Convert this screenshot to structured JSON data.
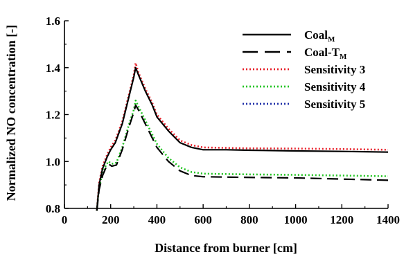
{
  "chart_data": {
    "type": "line",
    "xlabel": "Distance from burner [cm]",
    "ylabel": "Normalized NO concentration [-]",
    "xlim": [
      0,
      1400
    ],
    "ylim": [
      0.8,
      1.6
    ],
    "x_ticks": [
      0,
      200,
      400,
      600,
      800,
      1000,
      1200,
      1400
    ],
    "y_ticks": [
      0.8,
      1.0,
      1.2,
      1.4,
      1.6
    ],
    "x_tick_labels": [
      "0",
      "200",
      "400",
      "600",
      "800",
      "1000",
      "1200",
      "1400"
    ],
    "y_tick_labels": [
      "0.8",
      "1.0",
      "1.2",
      "1.4",
      "1.6"
    ],
    "grid": false,
    "legend_position": "top-right",
    "series": [
      {
        "name": "Coal",
        "name_sub": "M",
        "color": "#000000",
        "style": "solid",
        "points": [
          [
            140,
            0.79
          ],
          [
            150,
            0.9
          ],
          [
            165,
            0.97
          ],
          [
            185,
            1.02
          ],
          [
            200,
            1.05
          ],
          [
            220,
            1.08
          ],
          [
            250,
            1.16
          ],
          [
            275,
            1.26
          ],
          [
            300,
            1.36
          ],
          [
            308,
            1.4
          ],
          [
            320,
            1.37
          ],
          [
            350,
            1.3
          ],
          [
            380,
            1.24
          ],
          [
            400,
            1.19
          ],
          [
            450,
            1.13
          ],
          [
            500,
            1.08
          ],
          [
            550,
            1.06
          ],
          [
            600,
            1.05
          ],
          [
            700,
            1.05
          ],
          [
            800,
            1.048
          ],
          [
            1000,
            1.045
          ],
          [
            1200,
            1.043
          ],
          [
            1400,
            1.04
          ]
        ]
      },
      {
        "name": "Coal-T",
        "name_sub": "M",
        "color": "#000000",
        "style": "dashed",
        "points": [
          [
            140,
            0.79
          ],
          [
            150,
            0.88
          ],
          [
            165,
            0.94
          ],
          [
            180,
            0.975
          ],
          [
            190,
            0.99
          ],
          [
            205,
            0.98
          ],
          [
            225,
            0.985
          ],
          [
            250,
            1.05
          ],
          [
            280,
            1.15
          ],
          [
            300,
            1.21
          ],
          [
            308,
            1.24
          ],
          [
            320,
            1.22
          ],
          [
            350,
            1.16
          ],
          [
            380,
            1.1
          ],
          [
            400,
            1.06
          ],
          [
            450,
            1.0
          ],
          [
            500,
            0.96
          ],
          [
            550,
            0.94
          ],
          [
            600,
            0.935
          ],
          [
            800,
            0.932
          ],
          [
            1000,
            0.93
          ],
          [
            1200,
            0.925
          ],
          [
            1400,
            0.92
          ]
        ]
      },
      {
        "name": "Sensitivity 3",
        "name_sub": "",
        "color": "#e8202a",
        "style": "dotted",
        "points": [
          [
            140,
            0.79
          ],
          [
            150,
            0.91
          ],
          [
            165,
            0.98
          ],
          [
            185,
            1.03
          ],
          [
            200,
            1.06
          ],
          [
            220,
            1.09
          ],
          [
            250,
            1.17
          ],
          [
            275,
            1.27
          ],
          [
            300,
            1.37
          ],
          [
            308,
            1.42
          ],
          [
            320,
            1.38
          ],
          [
            350,
            1.31
          ],
          [
            380,
            1.25
          ],
          [
            400,
            1.2
          ],
          [
            450,
            1.14
          ],
          [
            500,
            1.09
          ],
          [
            550,
            1.07
          ],
          [
            600,
            1.06
          ],
          [
            700,
            1.058
          ],
          [
            800,
            1.056
          ],
          [
            1000,
            1.055
          ],
          [
            1200,
            1.053
          ],
          [
            1400,
            1.05
          ]
        ]
      },
      {
        "name": "Sensitivity 4",
        "name_sub": "",
        "color": "#22c422",
        "style": "dotted",
        "points": [
          [
            140,
            0.79
          ],
          [
            150,
            0.89
          ],
          [
            165,
            0.95
          ],
          [
            180,
            0.985
          ],
          [
            190,
            1.0
          ],
          [
            205,
            0.99
          ],
          [
            225,
            0.995
          ],
          [
            250,
            1.06
          ],
          [
            280,
            1.16
          ],
          [
            300,
            1.22
          ],
          [
            308,
            1.26
          ],
          [
            320,
            1.235
          ],
          [
            350,
            1.175
          ],
          [
            380,
            1.115
          ],
          [
            400,
            1.075
          ],
          [
            450,
            1.015
          ],
          [
            500,
            0.975
          ],
          [
            550,
            0.955
          ],
          [
            600,
            0.948
          ],
          [
            800,
            0.945
          ],
          [
            1000,
            0.943
          ],
          [
            1200,
            0.94
          ],
          [
            1400,
            0.937
          ]
        ]
      },
      {
        "name": "Sensitivity 5",
        "name_sub": "",
        "color": "#1f2fa8",
        "style": "dotted",
        "points": []
      }
    ]
  }
}
